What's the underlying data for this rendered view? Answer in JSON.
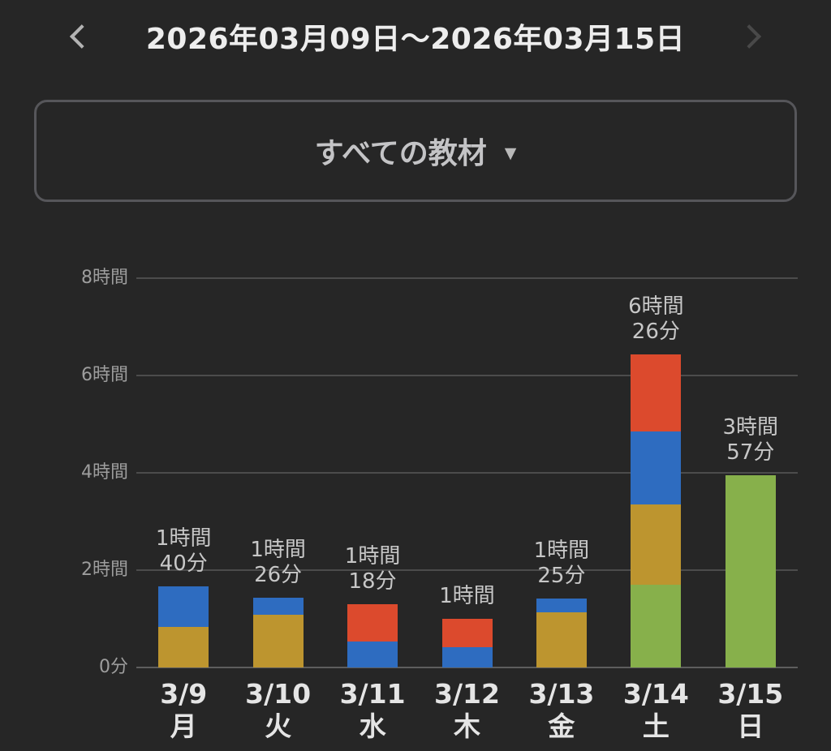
{
  "header": {
    "title": "2026年03月09日〜2026年03月15日"
  },
  "filter": {
    "label": "すべての教材",
    "caret_icon": "▼"
  },
  "chart_data": {
    "type": "bar",
    "stacked": true,
    "title": "",
    "xlabel": "",
    "ylabel": "",
    "grid": true,
    "legend": "none",
    "y_axis": {
      "unit": "hours",
      "ylim": [
        0,
        8
      ],
      "ticks": [
        {
          "hours": 8,
          "label": "8時間"
        },
        {
          "hours": 6,
          "label": "6時間"
        },
        {
          "hours": 4,
          "label": "4時間"
        },
        {
          "hours": 2,
          "label": "2時間"
        },
        {
          "hours": 0,
          "label": "0分"
        }
      ]
    },
    "colors": {
      "red": "#dc4a2d",
      "blue": "#2e6cc0",
      "yellow": "#bd952f",
      "green": "#87b04b"
    },
    "days": [
      {
        "date": "3/9",
        "weekday": "月",
        "total_minutes": 100,
        "label_lines": [
          "1時間",
          "40分"
        ],
        "segments": [
          {
            "color": "yellow",
            "minutes": 50
          },
          {
            "color": "blue",
            "minutes": 50
          }
        ]
      },
      {
        "date": "3/10",
        "weekday": "火",
        "total_minutes": 86,
        "label_lines": [
          "1時間",
          "26分"
        ],
        "segments": [
          {
            "color": "yellow",
            "minutes": 65
          },
          {
            "color": "blue",
            "minutes": 21
          }
        ]
      },
      {
        "date": "3/11",
        "weekday": "水",
        "total_minutes": 78,
        "label_lines": [
          "1時間",
          "18分"
        ],
        "segments": [
          {
            "color": "blue",
            "minutes": 32
          },
          {
            "color": "red",
            "minutes": 46
          }
        ]
      },
      {
        "date": "3/12",
        "weekday": "木",
        "total_minutes": 60,
        "label_lines": [
          "1時間"
        ],
        "segments": [
          {
            "color": "blue",
            "minutes": 25
          },
          {
            "color": "red",
            "minutes": 35
          }
        ]
      },
      {
        "date": "3/13",
        "weekday": "金",
        "total_minutes": 85,
        "label_lines": [
          "1時間",
          "25分"
        ],
        "segments": [
          {
            "color": "yellow",
            "minutes": 68
          },
          {
            "color": "blue",
            "minutes": 17
          }
        ]
      },
      {
        "date": "3/14",
        "weekday": "土",
        "total_minutes": 386,
        "label_lines": [
          "6時間",
          "26分"
        ],
        "segments": [
          {
            "color": "green",
            "minutes": 102
          },
          {
            "color": "yellow",
            "minutes": 99
          },
          {
            "color": "blue",
            "minutes": 90
          },
          {
            "color": "red",
            "minutes": 95
          }
        ]
      },
      {
        "date": "3/15",
        "weekday": "日",
        "total_minutes": 237,
        "label_lines": [
          "3時間",
          "57分"
        ],
        "segments": [
          {
            "color": "green",
            "minutes": 237
          }
        ]
      }
    ]
  }
}
